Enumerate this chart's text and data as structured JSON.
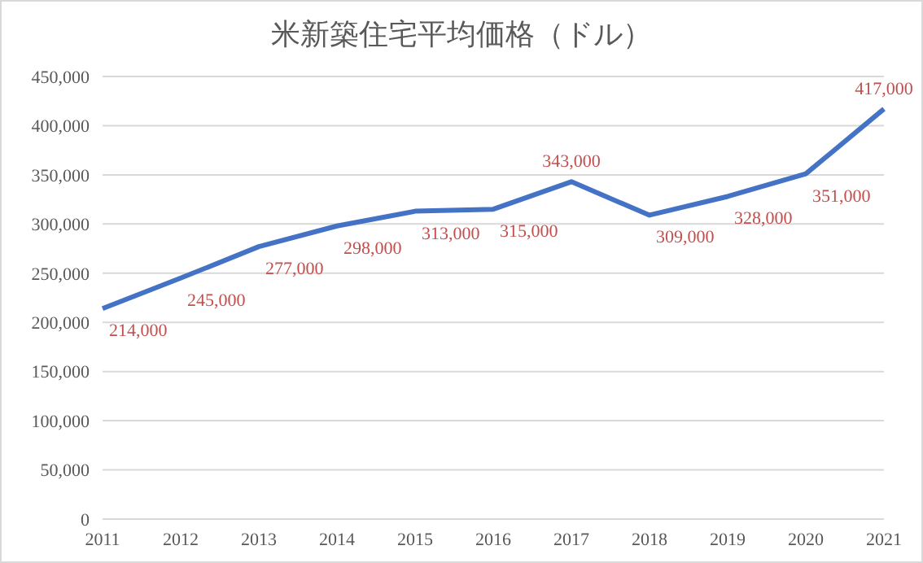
{
  "chart_data": {
    "type": "line",
    "title": "米新築住宅平均価格（ドル）",
    "categories": [
      "2011",
      "2012",
      "2013",
      "2014",
      "2015",
      "2016",
      "2017",
      "2018",
      "2019",
      "2020",
      "2021"
    ],
    "series": [
      {
        "color": "#4472c4",
        "values": [
          214000,
          245000,
          277000,
          298000,
          313000,
          315000,
          343000,
          309000,
          328000,
          351000,
          417000
        ],
        "value_labels": [
          "214,000",
          "245,000",
          "277,000",
          "298,000",
          "313,000",
          "315,000",
          "343,000",
          "309,000",
          "328,000",
          "351,000",
          "417,000"
        ]
      }
    ],
    "ylim": [
      0,
      450000
    ],
    "yticks": [
      0,
      {
        "value": 50000,
        "label": "50,000"
      },
      {
        "value": 100000,
        "label": "100,000"
      },
      {
        "value": 150000,
        "label": "150,000"
      },
      {
        "value": 200000,
        "label": "200,000"
      },
      {
        "value": 250000,
        "label": "250,000"
      },
      {
        "value": 300000,
        "label": "300,000"
      },
      {
        "value": 350000,
        "label": "350,000"
      },
      {
        "value": 400000,
        "label": "400,000"
      },
      {
        "value": 450000,
        "label": "450,000"
      }
    ],
    "grid": "y",
    "marker": "none",
    "line_style": "solid"
  }
}
